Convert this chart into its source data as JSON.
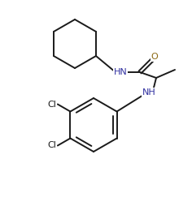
{
  "bg_color": "#ffffff",
  "line_color": "#1a1a1a",
  "atom_colors": {
    "O": "#8b6914",
    "N": "#3030a0",
    "Cl": "#1a1a1a",
    "C": "#1a1a1a"
  },
  "font_size_atom": 8.0,
  "figsize": [
    2.36,
    2.54
  ],
  "dpi": 100,
  "lw": 1.4
}
